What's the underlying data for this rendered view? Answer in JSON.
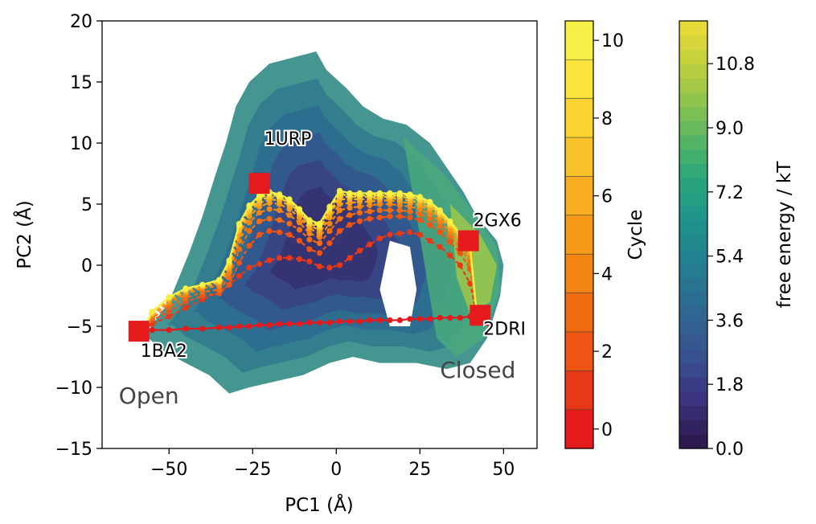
{
  "chart_data": {
    "type": "scatter",
    "xlabel": "PC1 (Å)",
    "ylabel": "PC2 (Å)",
    "xlim": [
      -70,
      60
    ],
    "ylim": [
      -15,
      20
    ],
    "xticks": [
      -50,
      -25,
      0,
      25,
      50
    ],
    "xtick_labels": [
      "−50",
      "−25",
      "0",
      "25",
      "50"
    ],
    "yticks": [
      -15,
      -10,
      -5,
      0,
      5,
      10,
      15,
      20
    ],
    "ytick_labels": [
      "−15",
      "−10",
      "−5",
      "0",
      "5",
      "10",
      "15",
      "20"
    ],
    "structures": [
      {
        "name": "1URP",
        "x": -23,
        "y": 6.7
      },
      {
        "name": "2GX6",
        "x": 39.5,
        "y": 2.0
      },
      {
        "name": "1BA2",
        "x": -59,
        "y": -5.4
      },
      {
        "name": "2DRI",
        "x": 43,
        "y": -4.1
      }
    ],
    "state_labels": [
      {
        "text": "Open",
        "x": -65,
        "y": -11.3
      },
      {
        "text": "Closed",
        "x": 31,
        "y": -9.2
      }
    ],
    "free_energy_region": {
      "description_kT_range": [
        0.0,
        12
      ],
      "boundary": [
        [
          -58,
          -6
        ],
        [
          -50,
          -3
        ],
        [
          -44,
          1
        ],
        [
          -40,
          4
        ],
        [
          -36,
          7.5
        ],
        [
          -33,
          10
        ],
        [
          -30,
          13
        ],
        [
          -26,
          15
        ],
        [
          -20,
          16.5
        ],
        [
          -13,
          17
        ],
        [
          -6,
          17.5
        ],
        [
          -3,
          16
        ],
        [
          3,
          14.5
        ],
        [
          8,
          13
        ],
        [
          14,
          12
        ],
        [
          21,
          11.5
        ],
        [
          28,
          10
        ],
        [
          33,
          8
        ],
        [
          38,
          6
        ],
        [
          42,
          4
        ],
        [
          48,
          2
        ],
        [
          50,
          0
        ],
        [
          49,
          -2.5
        ],
        [
          45,
          -6
        ],
        [
          40,
          -8
        ],
        [
          33,
          -8.5
        ],
        [
          24,
          -8
        ],
        [
          13,
          -8
        ],
        [
          5,
          -7.5
        ],
        [
          -2,
          -8
        ],
        [
          -10,
          -9
        ],
        [
          -18,
          -9.5
        ],
        [
          -26,
          -10
        ],
        [
          -32,
          -10.5
        ],
        [
          -38,
          -9
        ],
        [
          -45,
          -8
        ],
        [
          -52,
          -7
        ],
        [
          -56,
          -6
        ]
      ]
    },
    "path_x": [
      -58,
      -55,
      -50,
      -45,
      -40,
      -35,
      -32,
      -29,
      -26,
      -23,
      -20,
      -17,
      -14,
      -11,
      -8,
      -5,
      -2,
      1,
      4,
      7,
      10,
      13,
      16,
      19,
      22,
      25,
      28,
      31,
      34,
      37,
      40,
      42
    ],
    "series": [
      {
        "cycle": 0,
        "y": [
          -5.4,
          -5.3,
          -5.3,
          -5.2,
          -5.2,
          -5.1,
          -5.1,
          -5.0,
          -5.0,
          -4.9,
          -4.9,
          -4.8,
          -4.8,
          -4.8,
          -4.7,
          -4.7,
          -4.7,
          -4.6,
          -4.6,
          -4.6,
          -4.5,
          -4.5,
          -4.5,
          -4.5,
          -4.4,
          -4.4,
          -4.4,
          -4.3,
          -4.3,
          -4.3,
          -4.2,
          -4.1
        ]
      },
      {
        "cycle": 1,
        "y": [
          -5.4,
          -4.8,
          -4.2,
          -3.5,
          -2.8,
          -2.2,
          -1.6,
          -0.9,
          -0.2,
          0.1,
          0.4,
          0.6,
          0.6,
          0.5,
          0.3,
          -0.1,
          -0.2,
          0.0,
          0.6,
          1.2,
          1.7,
          2.2,
          2.5,
          2.6,
          2.7,
          2.5,
          2.0,
          1.5,
          0.8,
          0.0,
          -1.5,
          -4.1
        ]
      },
      {
        "cycle": 2,
        "y": [
          -5.4,
          -4.5,
          -3.8,
          -3.0,
          -2.5,
          -2.3,
          -1.6,
          0.2,
          1.6,
          2.5,
          2.8,
          2.7,
          2.5,
          2.0,
          1.3,
          1.0,
          1.8,
          2.8,
          3.3,
          3.6,
          3.8,
          3.9,
          4.0,
          4.0,
          3.9,
          3.7,
          3.3,
          2.7,
          1.9,
          1.0,
          -0.3,
          -4.1
        ]
      },
      {
        "cycle": 3,
        "y": [
          -5.4,
          -4.3,
          -3.4,
          -2.7,
          -2.2,
          -2.0,
          -1.0,
          1.3,
          2.8,
          3.6,
          3.8,
          3.7,
          3.4,
          2.9,
          2.1,
          1.8,
          2.8,
          3.8,
          4.1,
          4.3,
          4.4,
          4.5,
          4.5,
          4.5,
          4.4,
          4.2,
          3.8,
          3.2,
          2.4,
          1.4,
          0.3,
          -4.1
        ]
      },
      {
        "cycle": 4,
        "y": [
          -5.4,
          -4.1,
          -3.1,
          -2.4,
          -1.9,
          -1.7,
          -0.6,
          2.0,
          3.5,
          4.3,
          4.6,
          4.5,
          4.1,
          3.5,
          2.6,
          2.3,
          3.4,
          4.5,
          4.7,
          4.8,
          4.9,
          5.0,
          5.0,
          4.9,
          4.8,
          4.6,
          4.2,
          3.6,
          2.7,
          1.7,
          0.7,
          -4.1
        ]
      },
      {
        "cycle": 5,
        "y": [
          -5.4,
          -4.0,
          -2.9,
          -2.2,
          -1.8,
          -1.5,
          -0.3,
          2.5,
          4.0,
          4.8,
          5.1,
          5.0,
          4.6,
          3.9,
          3.0,
          2.6,
          3.9,
          5.0,
          5.1,
          5.2,
          5.2,
          5.3,
          5.3,
          5.2,
          5.1,
          4.9,
          4.5,
          3.9,
          3.0,
          2.0,
          1.0,
          -4.1
        ]
      },
      {
        "cycle": 6,
        "y": [
          -5.4,
          -3.9,
          -2.8,
          -2.1,
          -1.7,
          -1.4,
          -0.1,
          2.8,
          4.3,
          5.1,
          5.4,
          5.3,
          4.9,
          4.2,
          3.2,
          2.9,
          4.2,
          5.4,
          5.4,
          5.4,
          5.4,
          5.5,
          5.5,
          5.4,
          5.3,
          5.1,
          4.7,
          4.1,
          3.2,
          2.2,
          1.2,
          -4.1
        ]
      },
      {
        "cycle": 7,
        "y": [
          -5.4,
          -3.9,
          -2.7,
          -2.0,
          -1.7,
          -1.3,
          0.1,
          3.0,
          4.5,
          5.3,
          5.6,
          5.5,
          5.1,
          4.3,
          3.4,
          3.1,
          4.4,
          5.6,
          5.6,
          5.6,
          5.6,
          5.6,
          5.6,
          5.6,
          5.5,
          5.3,
          4.9,
          4.2,
          3.3,
          2.3,
          1.3,
          -4.1
        ]
      },
      {
        "cycle": 8,
        "y": [
          -5.4,
          -3.8,
          -2.7,
          -2.0,
          -1.6,
          -1.3,
          0.2,
          3.2,
          4.7,
          5.5,
          5.8,
          5.6,
          5.2,
          4.4,
          3.5,
          3.2,
          4.6,
          5.8,
          5.7,
          5.7,
          5.7,
          5.7,
          5.7,
          5.7,
          5.6,
          5.4,
          5.0,
          4.3,
          3.4,
          2.4,
          1.4,
          -4.1
        ]
      },
      {
        "cycle": 9,
        "y": [
          -5.4,
          -3.8,
          -2.6,
          -1.9,
          -1.6,
          -1.2,
          0.3,
          3.3,
          4.8,
          5.6,
          5.9,
          5.7,
          5.3,
          4.5,
          3.6,
          3.3,
          4.7,
          6.0,
          5.8,
          5.8,
          5.8,
          5.8,
          5.8,
          5.8,
          5.7,
          5.5,
          5.1,
          4.4,
          3.5,
          2.5,
          1.5,
          -4.1
        ]
      },
      {
        "cycle": 10,
        "y": [
          -5.4,
          -3.8,
          -2.6,
          -1.9,
          -1.6,
          -1.2,
          0.4,
          3.4,
          4.9,
          5.7,
          6.0,
          5.8,
          5.4,
          4.6,
          3.7,
          3.4,
          4.8,
          6.1,
          5.9,
          5.9,
          5.9,
          5.9,
          5.9,
          5.9,
          5.8,
          5.6,
          5.2,
          4.5,
          3.6,
          2.6,
          1.6,
          -4.1
        ]
      }
    ],
    "colorbars": [
      {
        "label": "Cycle",
        "range": [
          -0.5,
          10.5
        ],
        "ticks": [
          0,
          2,
          4,
          6,
          8,
          10
        ],
        "tick_labels": [
          "0",
          "2",
          "4",
          "6",
          "8",
          "10"
        ]
      },
      {
        "label": "free energy / kT",
        "range": [
          0.0,
          12.0
        ],
        "ticks": [
          0.0,
          1.8,
          3.6,
          5.4,
          7.2,
          9.0,
          10.8
        ],
        "tick_labels": [
          "0.0",
          "1.8",
          "3.6",
          "5.4",
          "7.2",
          "9.0",
          "10.8"
        ]
      }
    ],
    "grid": false
  },
  "colors": {
    "structure_marker": "#e41a1c",
    "cycle_colormap": [
      "#e41a1c",
      "#e93818",
      "#ee5414",
      "#f26d12",
      "#f48414",
      "#f69a18",
      "#f8ae1f",
      "#f9c228",
      "#fad332",
      "#f9e33c",
      "#f6ef45"
    ],
    "energy_colormap": [
      "#2d1a4e",
      "#3a2f7a",
      "#3a4b8e",
      "#325f92",
      "#2a7192",
      "#21838f",
      "#1e958a",
      "#2aa67c",
      "#55b565",
      "#8bc34f",
      "#c0cf3e",
      "#e6d93a"
    ]
  }
}
